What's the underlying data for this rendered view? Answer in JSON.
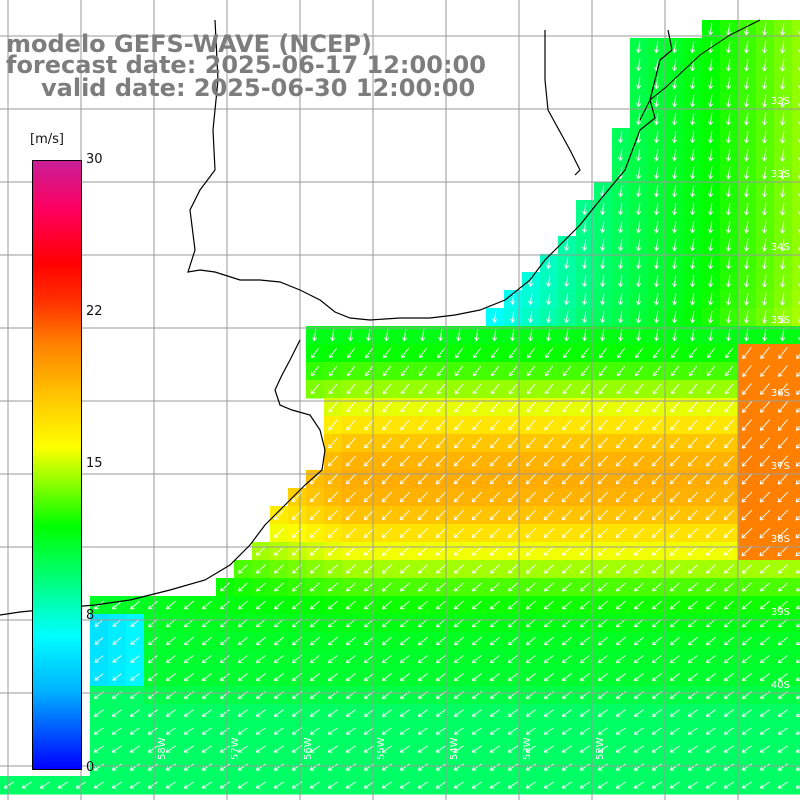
{
  "title": {
    "line1": "modelo GEFS-WAVE (NCEP)",
    "line2": "forecast date: 2025-06-17 12:00:00",
    "line3": "valid date: 2025-06-30 12:00:00"
  },
  "colorbar": {
    "unit": "[m/s]",
    "min": 0,
    "max": 30,
    "ticks": [
      "30",
      "22",
      "15",
      "8",
      "0"
    ]
  },
  "map": {
    "region": "Rio de la Plata / Uruguay / Buenos Aires coast",
    "lat_labels": [
      "32S",
      "33S",
      "34S",
      "35S",
      "36S",
      "37S",
      "38S",
      "39S",
      "40S"
    ],
    "lon_labels": [
      "58W",
      "57W",
      "56W",
      "55W",
      "54W",
      "53W",
      "52W"
    ],
    "colors": {
      "land": "#ffffff",
      "grid": "#9a9a9a",
      "coast": "#000000",
      "arrow": "#ffffff"
    },
    "wind_direction": "from north-east in south, from north in north"
  }
}
